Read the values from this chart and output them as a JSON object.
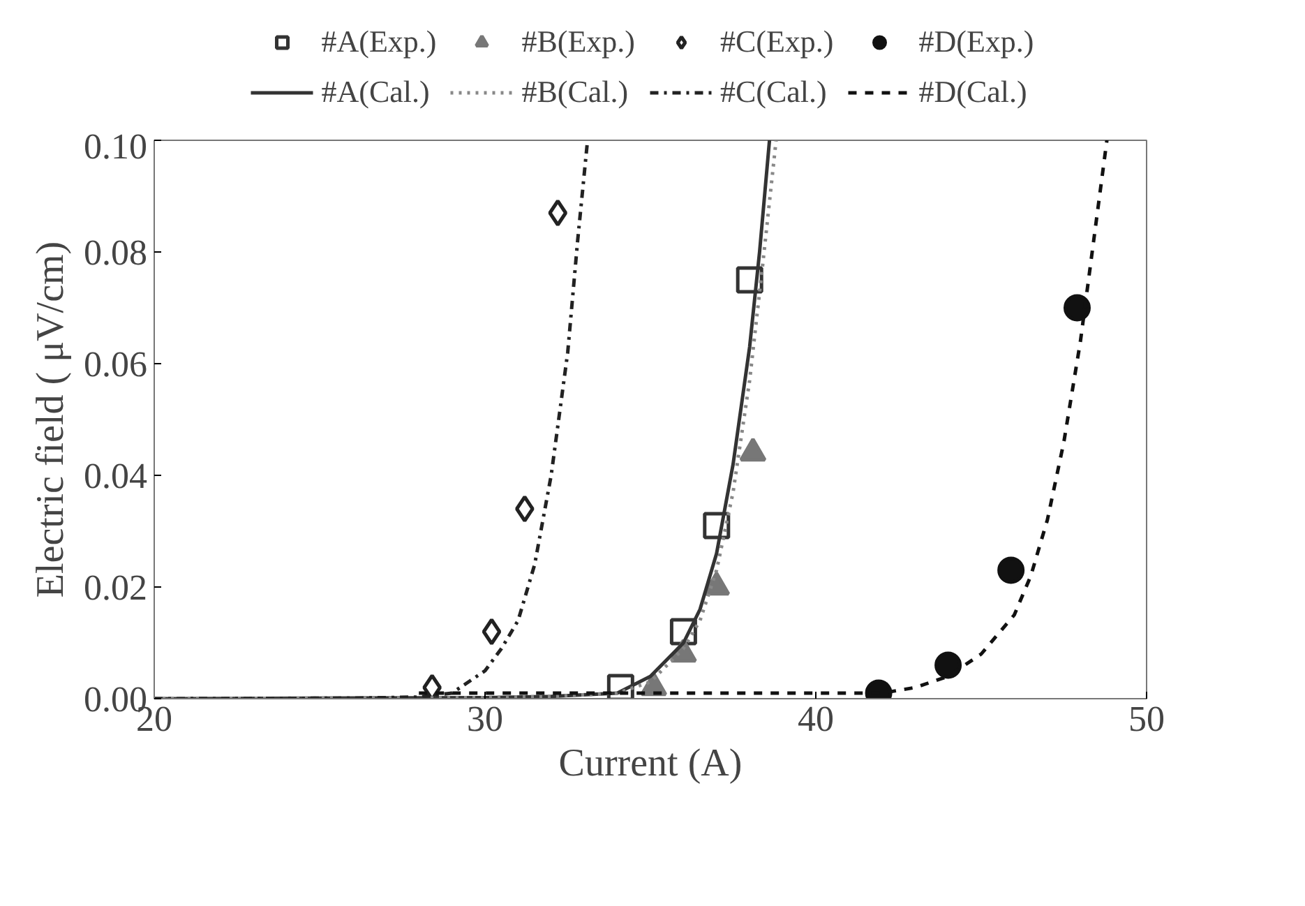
{
  "chart_data": {
    "type": "scatter",
    "xlabel": "Current (A)",
    "ylabel": "Electric field ( μV/cm)",
    "xlim": [
      20,
      50
    ],
    "ylim": [
      0,
      0.1
    ],
    "xticks": [
      20,
      30,
      40,
      50
    ],
    "yticks": [
      {
        "value": 0,
        "label": "0.00"
      },
      {
        "value": 0.02,
        "label": "0.02"
      },
      {
        "value": 0.04,
        "label": "0.04"
      },
      {
        "value": 0.06,
        "label": "0.06"
      },
      {
        "value": 0.08,
        "label": "0.08"
      },
      {
        "value": 0.1,
        "label": "0.10"
      }
    ],
    "grid": false,
    "legend": "top",
    "series": [
      {
        "name": "#A(Exp.)",
        "marker": "square",
        "color": "#333333",
        "x": [
          34.1,
          36.0,
          37.0,
          38.0
        ],
        "values": [
          0.002,
          0.012,
          0.031,
          0.075
        ]
      },
      {
        "name": "#B(Exp.)",
        "marker": "triangle",
        "color": "#777777",
        "x": [
          35.1,
          36.0,
          37.0,
          38.1
        ],
        "values": [
          0.002,
          0.008,
          0.02,
          0.044
        ]
      },
      {
        "name": "#C(Exp.)",
        "marker": "diamond",
        "color": "#222222",
        "x": [
          28.4,
          30.2,
          31.2,
          32.2
        ],
        "values": [
          0.002,
          0.012,
          0.034,
          0.087
        ]
      },
      {
        "name": "#D(Exp.)",
        "marker": "circle",
        "color": "#111111",
        "x": [
          41.9,
          44.0,
          45.9,
          47.9
        ],
        "values": [
          0.001,
          0.006,
          0.023,
          0.07
        ]
      },
      {
        "name": "#A(Cal.)",
        "type": "line",
        "line_style": "solid",
        "color": "#333333",
        "x": [
          20,
          30,
          32,
          34,
          35,
          36,
          36.5,
          37,
          37.5,
          38,
          38.3,
          38.6
        ],
        "values": [
          0,
          0.0002,
          0.0004,
          0.001,
          0.004,
          0.01,
          0.016,
          0.026,
          0.042,
          0.063,
          0.08,
          0.1
        ]
      },
      {
        "name": "#B(Cal.)",
        "type": "line",
        "line_style": "dotted",
        "color": "#888888",
        "x": [
          20,
          30,
          32,
          34,
          35,
          36,
          36.5,
          37,
          37.5,
          38,
          38.4,
          38.8
        ],
        "values": [
          0,
          0.0002,
          0.0004,
          0.001,
          0.003,
          0.009,
          0.014,
          0.023,
          0.037,
          0.057,
          0.078,
          0.1
        ]
      },
      {
        "name": "#C(Cal.)",
        "type": "line",
        "line_style": "dashdot",
        "color": "#222222",
        "x": [
          20,
          26,
          28,
          29,
          29.5,
          30,
          30.5,
          31,
          31.5,
          32,
          32.5,
          32.8,
          33.1
        ],
        "values": [
          0,
          0.0001,
          0.0003,
          0.001,
          0.003,
          0.005,
          0.009,
          0.014,
          0.024,
          0.04,
          0.062,
          0.082,
          0.1
        ]
      },
      {
        "name": "#D(Cal.)",
        "type": "line",
        "line_style": "dashed",
        "color": "#111111",
        "x": [
          28,
          40,
          42,
          43,
          44,
          45,
          46,
          46.5,
          47,
          47.5,
          48,
          48.4,
          48.8
        ],
        "values": [
          0.001,
          0.001,
          0.001,
          0.002,
          0.004,
          0.008,
          0.015,
          0.022,
          0.032,
          0.046,
          0.064,
          0.082,
          0.1
        ]
      }
    ]
  }
}
